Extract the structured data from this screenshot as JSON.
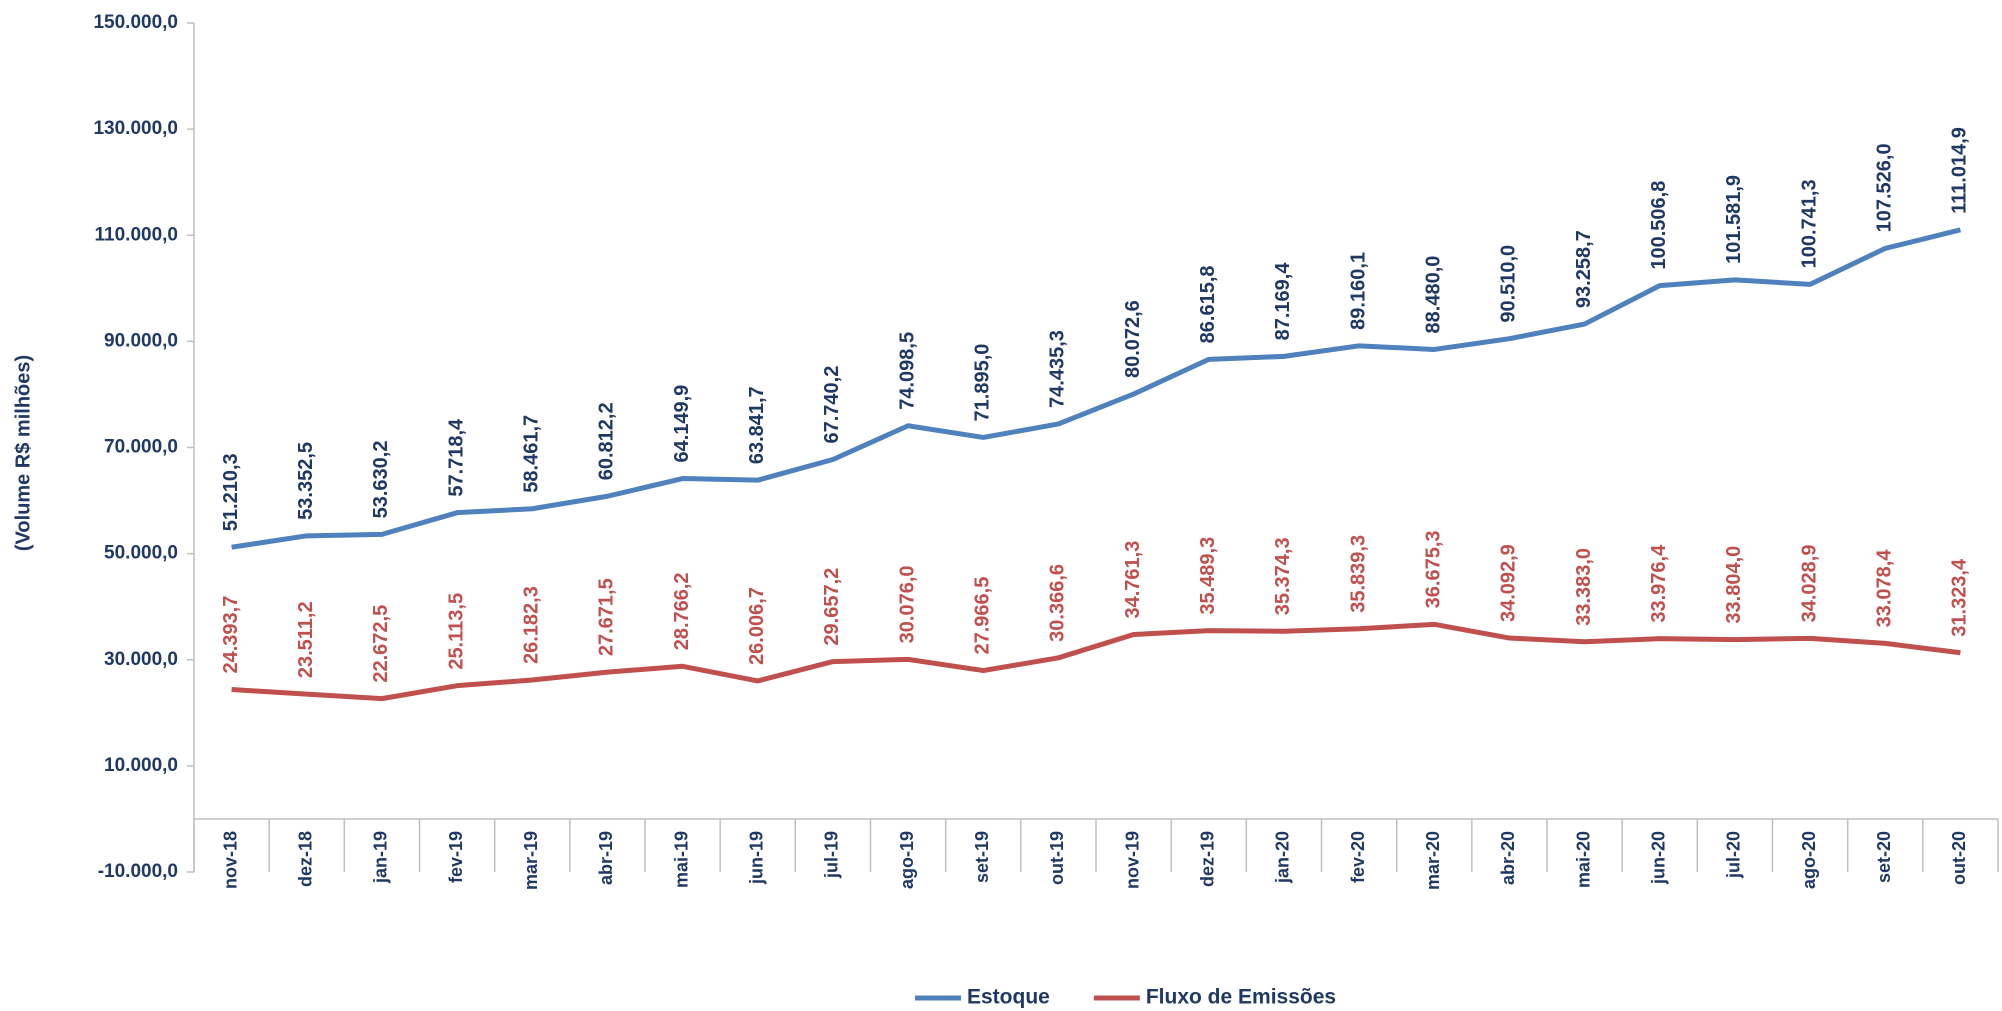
{
  "chart_data": {
    "type": "line",
    "y_label": "(Volume R$ milhões)",
    "categories": [
      "nov-18",
      "dez-18",
      "jan-19",
      "fev-19",
      "mar-19",
      "abr-19",
      "mai-19",
      "jun-19",
      "jul-19",
      "ago-19",
      "set-19",
      "out-19",
      "nov-19",
      "dez-19",
      "jan-20",
      "fev-20",
      "mar-20",
      "abr-20",
      "mai-20",
      "jun-20",
      "jul-20",
      "ago-20",
      "set-20",
      "out-20"
    ],
    "series": [
      {
        "name": "Estoque",
        "color": "#4f81bd",
        "values": [
          51210.3,
          53352.5,
          53630.2,
          57718.4,
          58461.7,
          60812.2,
          64149.9,
          63841.7,
          67740.2,
          74098.5,
          71895.0,
          74435.3,
          80072.6,
          86615.8,
          87169.4,
          89160.1,
          88480.0,
          90510.0,
          93258.7,
          100506.8,
          101581.9,
          100741.3,
          107526.0,
          111014.9
        ],
        "value_labels": [
          "51.210,3",
          "53.352,5",
          "53.630,2",
          "57.718,4",
          "58.461,7",
          "60.812,2",
          "64.149,9",
          "63.841,7",
          "67.740,2",
          "74.098,5",
          "71.895,0",
          "74.435,3",
          "80.072,6",
          "86.615,8",
          "87.169,4",
          "89.160,1",
          "88.480,0",
          "90.510,0",
          "93.258,7",
          "100.506,8",
          "101.581,9",
          "100.741,3",
          "107.526,0",
          "111.014,9"
        ],
        "label_color": "#1f3864"
      },
      {
        "name": "Fluxo de Emissões",
        "color": "#c0504d",
        "values": [
          24393.7,
          23511.2,
          22672.5,
          25113.5,
          26182.3,
          27671.5,
          28766.2,
          26006.7,
          29657.2,
          30076.0,
          27966.5,
          30366.6,
          34761.3,
          35489.3,
          35374.3,
          35839.3,
          36675.3,
          34092.9,
          33383.0,
          33976.4,
          33804.0,
          34028.9,
          33078.4,
          31323.4
        ],
        "value_labels": [
          "24.393,7",
          "23.511,2",
          "22.672,5",
          "25.113,5",
          "26.182,3",
          "27.671,5",
          "28.766,2",
          "26.006,7",
          "29.657,2",
          "30.076,0",
          "27.966,5",
          "30.366,6",
          "34.761,3",
          "35.489,3",
          "35.374,3",
          "35.839,3",
          "36.675,3",
          "34.092,9",
          "33.383,0",
          "33.976,4",
          "33.804,0",
          "34.028,9",
          "33.078,4",
          "31.323,4"
        ],
        "label_color": "#c0504d"
      }
    ],
    "ylim": [
      -10000,
      150000
    ],
    "yticks": [
      {
        "value": -10000,
        "label": "-10.000,0"
      },
      {
        "value": 10000,
        "label": "10.000,0"
      },
      {
        "value": 30000,
        "label": "30.000,0"
      },
      {
        "value": 50000,
        "label": "50.000,0"
      },
      {
        "value": 70000,
        "label": "70.000,0"
      },
      {
        "value": 90000,
        "label": "90.000,0"
      },
      {
        "value": 110000,
        "label": "110.000,0"
      },
      {
        "value": 130000,
        "label": "130.000,0"
      },
      {
        "value": 150000,
        "label": "150.000,0"
      }
    ],
    "grid": false,
    "legend": "bottom"
  }
}
